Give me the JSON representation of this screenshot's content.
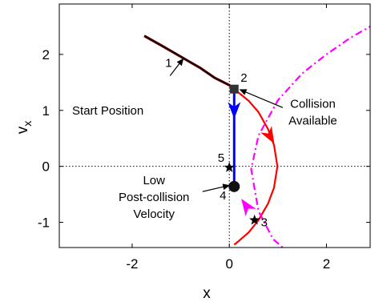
{
  "chart_data": {
    "type": "line",
    "title": "",
    "xlabel": "x",
    "ylabel": "v_x",
    "xlim": [
      -3.5,
      2.9
    ],
    "ylim": [
      -1.45,
      2.9
    ],
    "xticks": [
      -2,
      0,
      2
    ],
    "yticks": [
      -1,
      0,
      1,
      2
    ],
    "xtick_labels": [
      "-2",
      "0",
      "2"
    ],
    "ytick_labels": [
      "-1",
      "0",
      "1",
      "2"
    ],
    "grid": false,
    "reference_lines": [
      {
        "orientation": "vertical",
        "value": 0,
        "style": "dotted"
      },
      {
        "orientation": "horizontal",
        "value": 0,
        "style": "dotted"
      }
    ],
    "series": [
      {
        "role": "trajectory-segment-1",
        "color": "#000000",
        "overlay_color": "#cc0000",
        "x": [
          -1.75,
          -1.4,
          -1.0,
          -0.6,
          -0.3,
          0.0,
          0.1
        ],
        "y": [
          2.33,
          2.16,
          1.96,
          1.76,
          1.58,
          1.45,
          1.38
        ]
      },
      {
        "role": "collision-jump",
        "color": "#0000ff",
        "x": [
          0.1,
          0.1
        ],
        "y": [
          1.38,
          -0.36
        ]
      },
      {
        "role": "red-parabola",
        "color": "#ff0000",
        "x": [
          0.1,
          0.4,
          0.6,
          0.8,
          0.92,
          0.99,
          0.92,
          0.8,
          0.6,
          0.4,
          0.2,
          0.1
        ],
        "y": [
          1.38,
          1.17,
          0.97,
          0.66,
          0.38,
          0.0,
          -0.38,
          -0.66,
          -0.96,
          -1.18,
          -1.33,
          -1.4
        ]
      },
      {
        "role": "magenta-dash-dot",
        "color": "#ff00ff",
        "x": [
          3.0,
          2.5,
          2.0,
          1.5,
          1.0,
          0.6,
          0.45,
          0.6,
          0.9,
          1.1
        ],
        "y": [
          2.55,
          2.3,
          2.0,
          1.66,
          1.18,
          0.55,
          -0.05,
          -0.8,
          -1.3,
          -1.45
        ]
      }
    ],
    "markers": [
      {
        "id": "2",
        "shape": "square",
        "color": "#333333",
        "x": 0.1,
        "y": 1.38
      },
      {
        "id": "4",
        "shape": "circle",
        "color": "#111111",
        "x": 0.1,
        "y": -0.36
      },
      {
        "id": "5",
        "shape": "star",
        "color": "#000000",
        "x": 0.0,
        "y": -0.02
      },
      {
        "id": "3",
        "shape": "star",
        "color": "#000000",
        "x": 0.52,
        "y": -0.96
      }
    ],
    "direction_arrows": [
      {
        "color": "#0000ff",
        "x": 0.1,
        "y": 1.02,
        "direction": "down"
      },
      {
        "color": "#ff0000",
        "x": 0.83,
        "y": 0.55,
        "direction": "down-right"
      },
      {
        "color": "#ff00ff",
        "x": 0.36,
        "y": -0.72,
        "direction": "up-left"
      }
    ],
    "point_labels": [
      {
        "text": "1",
        "x": -1.25,
        "y": 1.85
      },
      {
        "text": "2",
        "x": 0.3,
        "y": 1.58
      },
      {
        "text": "3",
        "x": 0.72,
        "y": -1.0
      },
      {
        "text": "4",
        "x": -0.13,
        "y": -0.52
      },
      {
        "text": "5",
        "x": -0.17,
        "y": 0.15
      }
    ],
    "annotations": [
      {
        "lines": [
          "Start Position"
        ],
        "text_x": -2.5,
        "text_y": 1.0,
        "arrow_from": [
          -1.22,
          1.62
        ],
        "arrow_to": [
          -0.95,
          1.92
        ]
      },
      {
        "lines": [
          "Collision",
          "Available"
        ],
        "text_x": 1.72,
        "text_y": 0.97,
        "arrow_from": [
          1.1,
          1.05
        ],
        "arrow_to": [
          0.22,
          1.37
        ]
      },
      {
        "lines": [
          "Low",
          "Post-collision",
          "Velocity"
        ],
        "text_x": -1.55,
        "text_y": -0.55,
        "arrow_from": [
          -0.55,
          -0.45
        ],
        "arrow_to": [
          0.0,
          -0.34
        ]
      }
    ]
  }
}
